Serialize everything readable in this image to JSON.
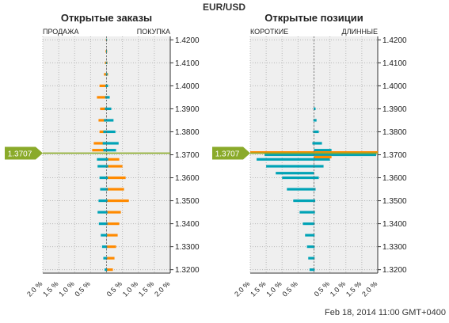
{
  "header": {
    "symbol": "EUR/USD",
    "timestamp": "Feb 18, 2014 11:00 GMT+0400"
  },
  "colors": {
    "sell_short": "#ff8a00",
    "buy_long": "#00a3b6",
    "price_marker": "#8aaa2a",
    "plot_background": "#efefef"
  },
  "chart_data": [
    {
      "type": "bar",
      "orientation": "horizontal-diverging",
      "title": "Открытые заказы",
      "left_label": "ПРОДАЖА",
      "right_label": "ПОКУПКА",
      "current_price": "1.3707",
      "y_ticks": [
        "1.4200",
        "1.4100",
        "1.4000",
        "1.3900",
        "1.3800",
        "1.3700",
        "1.3600",
        "1.3500",
        "1.3400",
        "1.3300",
        "1.3200"
      ],
      "ylim": [
        1.3185,
        1.4215
      ],
      "x_ticks": [
        "2.0 %",
        "1.5 %",
        "1.0 %",
        "0.5 %",
        "",
        "0.5 %",
        "1.0 %",
        "1.5 %",
        "2.0 %"
      ],
      "xlim_percent": [
        -2.0,
        2.0
      ],
      "series": [
        {
          "name": "ПРОДАЖА",
          "color": "#ff8a00",
          "side": "left",
          "levels": [
            1.42,
            1.415,
            1.41,
            1.405,
            1.4,
            1.395,
            1.39,
            1.385,
            1.38,
            1.375,
            1.372,
            1.368,
            1.365,
            1.36,
            1.355,
            1.35,
            1.345,
            1.34,
            1.335,
            1.33,
            1.325,
            1.32
          ],
          "values": [
            0.02,
            0.03,
            0.05,
            0.08,
            0.22,
            0.3,
            0.2,
            0.25,
            0.22,
            0.4,
            0.45,
            0.05,
            0.03,
            0.02,
            0.02,
            0.02,
            0.02,
            0.02,
            0.02,
            0.02,
            0.02,
            0.02
          ]
        },
        {
          "name": "ПОКУПКА",
          "color": "#00a3b6",
          "side": "left",
          "levels": [
            1.42,
            1.415,
            1.41,
            1.405,
            1.4,
            1.395,
            1.39,
            1.385,
            1.38,
            1.375,
            1.372,
            1.368,
            1.365,
            1.36,
            1.355,
            1.35,
            1.345,
            1.34,
            1.335,
            1.33,
            1.325,
            1.32
          ],
          "values": [
            0.01,
            0.01,
            0.02,
            0.02,
            0.03,
            0.04,
            0.05,
            0.08,
            0.1,
            0.12,
            0.1,
            0.3,
            0.28,
            0.22,
            0.2,
            0.25,
            0.28,
            0.24,
            0.18,
            0.14,
            0.1,
            0.06
          ]
        },
        {
          "name": "ПОКУПКА",
          "color": "#ff8a00",
          "side": "right",
          "levels": [
            1.42,
            1.415,
            1.41,
            1.405,
            1.4,
            1.395,
            1.39,
            1.385,
            1.38,
            1.375,
            1.372,
            1.368,
            1.365,
            1.36,
            1.355,
            1.35,
            1.345,
            1.34,
            1.335,
            1.33,
            1.325,
            1.32
          ],
          "values": [
            0.01,
            0.02,
            0.03,
            0.05,
            0.05,
            0.04,
            0.03,
            0.02,
            0.02,
            0.02,
            0.02,
            0.4,
            0.5,
            0.6,
            0.55,
            0.7,
            0.45,
            0.4,
            0.35,
            0.3,
            0.25,
            0.2
          ]
        },
        {
          "name": "ПРОДАЖА",
          "color": "#00a3b6",
          "side": "right",
          "levels": [
            1.42,
            1.415,
            1.41,
            1.405,
            1.4,
            1.395,
            1.39,
            1.385,
            1.38,
            1.375,
            1.372,
            1.368,
            1.365,
            1.36,
            1.355,
            1.35,
            1.345,
            1.34,
            1.335,
            1.33,
            1.325,
            1.32
          ],
          "values": [
            0.01,
            0.01,
            0.02,
            0.03,
            0.05,
            0.1,
            0.15,
            0.22,
            0.28,
            0.38,
            0.3,
            0.05,
            0.05,
            0.04,
            0.04,
            0.03,
            0.03,
            0.03,
            0.02,
            0.02,
            0.02,
            0.02
          ]
        }
      ]
    },
    {
      "type": "bar",
      "orientation": "horizontal-diverging",
      "title": "Открытые позиции",
      "left_label": "КОРОТКИЕ",
      "right_label": "ДЛИННЫЕ",
      "current_price": "1.3707",
      "y_ticks": [
        "1.4200",
        "1.4100",
        "1.4000",
        "1.3900",
        "1.3800",
        "1.3700",
        "1.3600",
        "1.3500",
        "1.3400",
        "1.3300",
        "1.3200"
      ],
      "ylim": [
        1.3185,
        1.4215
      ],
      "x_ticks": [
        "2.0 %",
        "1.5 %",
        "1.0 %",
        "0.5 %",
        "",
        "0.5 %",
        "1.0 %",
        "1.5 %",
        "2.0 %"
      ],
      "xlim_percent": [
        -2.0,
        2.0
      ],
      "series": [
        {
          "name": "КОРОТКИЕ",
          "color": "#00a3b6",
          "side": "left",
          "levels": [
            1.39,
            1.385,
            1.38,
            1.375,
            1.37,
            1.368,
            1.365,
            1.362,
            1.36,
            1.355,
            1.35,
            1.345,
            1.34,
            1.335,
            1.33,
            1.325,
            1.32
          ],
          "values": [
            0.01,
            0.02,
            0.03,
            0.05,
            1.55,
            1.8,
            1.5,
            1.2,
            1.0,
            0.85,
            0.65,
            0.45,
            0.35,
            0.28,
            0.22,
            0.18,
            0.14
          ]
        },
        {
          "name": "КОРОТКИЕ",
          "color": "#ff8a00",
          "side": "left",
          "levels": [
            1.371
          ],
          "values": [
            2.0
          ]
        },
        {
          "name": "ДЛИННЫЕ",
          "color": "#00a3b6",
          "side": "right",
          "levels": [
            1.39,
            1.385,
            1.38,
            1.375,
            1.372,
            1.37,
            1.368,
            1.365,
            1.36,
            1.355,
            1.35,
            1.345,
            1.34,
            1.335,
            1.33,
            1.325,
            1.32
          ],
          "values": [
            0.05,
            0.08,
            0.15,
            0.25,
            0.55,
            1.95,
            0.5,
            0.3,
            0.15,
            0.05,
            0.04,
            0.03,
            0.02,
            0.02,
            0.02,
            0.02,
            0.02
          ]
        },
        {
          "name": "ДЛИННЫЕ",
          "color": "#ff8a00",
          "side": "right",
          "levels": [
            1.371,
            1.369
          ],
          "values": [
            2.0,
            0.55
          ]
        }
      ]
    }
  ]
}
